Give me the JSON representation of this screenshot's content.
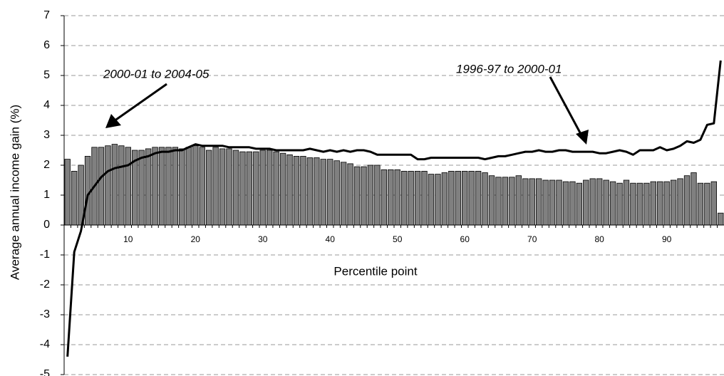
{
  "chart_data": {
    "type": "bar",
    "x_label": "Percentile point",
    "y_label": "Average annual income gain (%)",
    "categories": [
      null,
      null,
      null,
      null,
      null,
      null,
      null,
      null,
      null,
      "10",
      null,
      null,
      null,
      null,
      null,
      null,
      null,
      null,
      null,
      "20",
      null,
      null,
      null,
      null,
      null,
      null,
      null,
      null,
      null,
      "30",
      null,
      null,
      null,
      null,
      null,
      null,
      null,
      null,
      null,
      "40",
      null,
      null,
      null,
      null,
      null,
      null,
      null,
      null,
      null,
      "50",
      null,
      null,
      null,
      null,
      null,
      null,
      null,
      null,
      null,
      "60",
      null,
      null,
      null,
      null,
      null,
      null,
      null,
      null,
      null,
      "70",
      null,
      null,
      null,
      null,
      null,
      null,
      null,
      null,
      null,
      "80",
      null,
      null,
      null,
      null,
      null,
      null,
      null,
      null,
      null,
      "90",
      null,
      null,
      null,
      null,
      null,
      null,
      null,
      null
    ],
    "series": [
      {
        "name": "2000-01 to 2004-05",
        "type": "bar",
        "color": "#808080",
        "values": [
          2.2,
          1.8,
          2.0,
          2.3,
          2.6,
          2.6,
          2.65,
          2.7,
          2.65,
          2.6,
          2.5,
          2.5,
          2.55,
          2.6,
          2.6,
          2.6,
          2.6,
          2.55,
          2.6,
          2.65,
          2.6,
          2.5,
          2.6,
          2.55,
          2.55,
          2.5,
          2.45,
          2.45,
          2.45,
          2.5,
          2.5,
          2.45,
          2.4,
          2.35,
          2.3,
          2.3,
          2.25,
          2.25,
          2.2,
          2.2,
          2.15,
          2.1,
          2.05,
          1.95,
          1.95,
          2.0,
          2.0,
          1.85,
          1.85,
          1.85,
          1.8,
          1.8,
          1.8,
          1.8,
          1.7,
          1.7,
          1.75,
          1.8,
          1.8,
          1.8,
          1.8,
          1.8,
          1.75,
          1.65,
          1.6,
          1.6,
          1.6,
          1.65,
          1.55,
          1.55,
          1.55,
          1.5,
          1.5,
          1.5,
          1.45,
          1.45,
          1.4,
          1.5,
          1.55,
          1.55,
          1.5,
          1.45,
          1.4,
          1.5,
          1.4,
          1.4,
          1.4,
          1.45,
          1.45,
          1.45,
          1.5,
          1.55,
          1.65,
          1.75,
          1.4,
          1.4,
          1.45,
          0.4
        ]
      },
      {
        "name": "1996-97 to 2000-01",
        "type": "line",
        "color": "#000000",
        "values": [
          -4.4,
          -0.9,
          -0.2,
          1.0,
          1.3,
          1.6,
          1.8,
          1.9,
          1.95,
          2.0,
          2.15,
          2.25,
          2.3,
          2.4,
          2.45,
          2.45,
          2.5,
          2.5,
          2.6,
          2.7,
          2.65,
          2.65,
          2.65,
          2.65,
          2.6,
          2.6,
          2.6,
          2.6,
          2.55,
          2.55,
          2.55,
          2.5,
          2.5,
          2.5,
          2.5,
          2.5,
          2.55,
          2.5,
          2.45,
          2.5,
          2.45,
          2.5,
          2.45,
          2.5,
          2.5,
          2.45,
          2.35,
          2.35,
          2.35,
          2.35,
          2.35,
          2.35,
          2.2,
          2.2,
          2.25,
          2.25,
          2.25,
          2.25,
          2.25,
          2.25,
          2.25,
          2.25,
          2.2,
          2.25,
          2.3,
          2.3,
          2.35,
          2.4,
          2.45,
          2.45,
          2.5,
          2.45,
          2.45,
          2.5,
          2.5,
          2.45,
          2.45,
          2.45,
          2.45,
          2.4,
          2.4,
          2.45,
          2.5,
          2.45,
          2.35,
          2.5,
          2.5,
          2.5,
          2.6,
          2.5,
          2.55,
          2.65,
          2.8,
          2.75,
          2.85,
          3.35,
          3.4,
          5.5
        ]
      }
    ],
    "ylim": [
      -5,
      7
    ],
    "yticks": [
      -5,
      -4,
      -3,
      -2,
      -1,
      0,
      1,
      2,
      3,
      4,
      5,
      6,
      7
    ],
    "grid": true
  }
}
